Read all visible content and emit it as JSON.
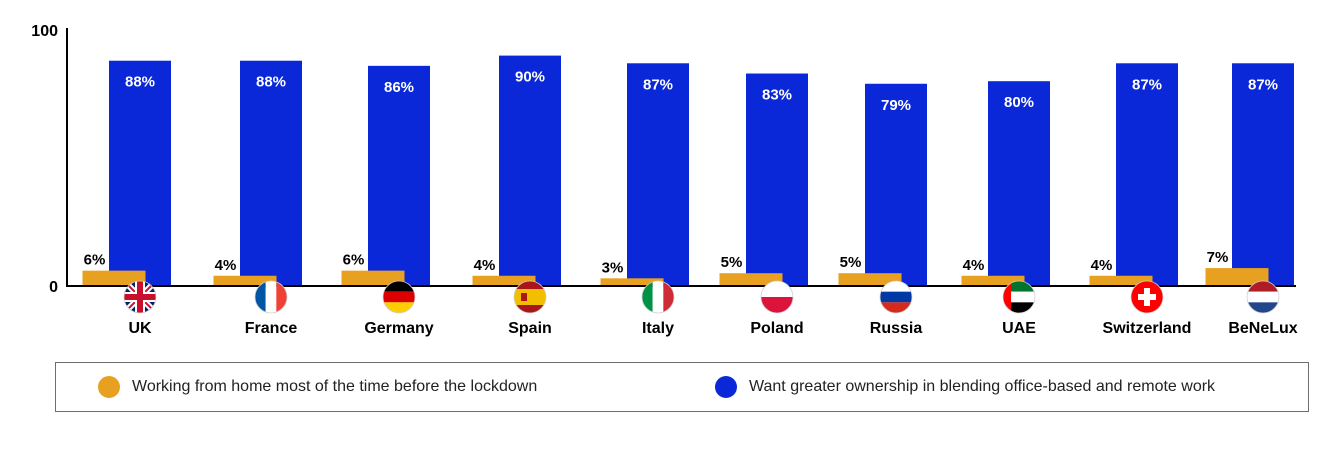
{
  "chart_data": {
    "type": "bar",
    "categories": [
      "UK",
      "France",
      "Germany",
      "Spain",
      "Italy",
      "Poland",
      "Russia",
      "UAE",
      "Switzerland",
      "BeNeLux"
    ],
    "series": [
      {
        "name": "Working from home most of the time before the lockdown",
        "values": [
          6,
          4,
          6,
          4,
          3,
          5,
          5,
          4,
          4,
          7
        ],
        "labels": [
          "6%",
          "4%",
          "6%",
          "4%",
          "3%",
          "5%",
          "5%",
          "4%",
          "4%",
          "7%"
        ],
        "color": "#e8a020"
      },
      {
        "name": "Want greater ownership in blending office-based and remote work",
        "values": [
          88,
          88,
          86,
          90,
          87,
          83,
          79,
          80,
          87,
          87
        ],
        "labels": [
          "88%",
          "88%",
          "86%",
          "90%",
          "87%",
          "83%",
          "79%",
          "80%",
          "87%",
          "87%"
        ],
        "color": "#0a28d8"
      }
    ],
    "flag_icons": [
      "uk-flag-icon",
      "france-flag-icon",
      "germany-flag-icon",
      "spain-flag-icon",
      "italy-flag-icon",
      "poland-flag-icon",
      "russia-flag-icon",
      "uae-flag-icon",
      "switzerland-flag-icon",
      "benelux-flag-icon"
    ],
    "y_ticks": [
      "0",
      "100"
    ],
    "ylim": [
      0,
      100
    ],
    "grid": false,
    "legend_position": "bottom"
  }
}
